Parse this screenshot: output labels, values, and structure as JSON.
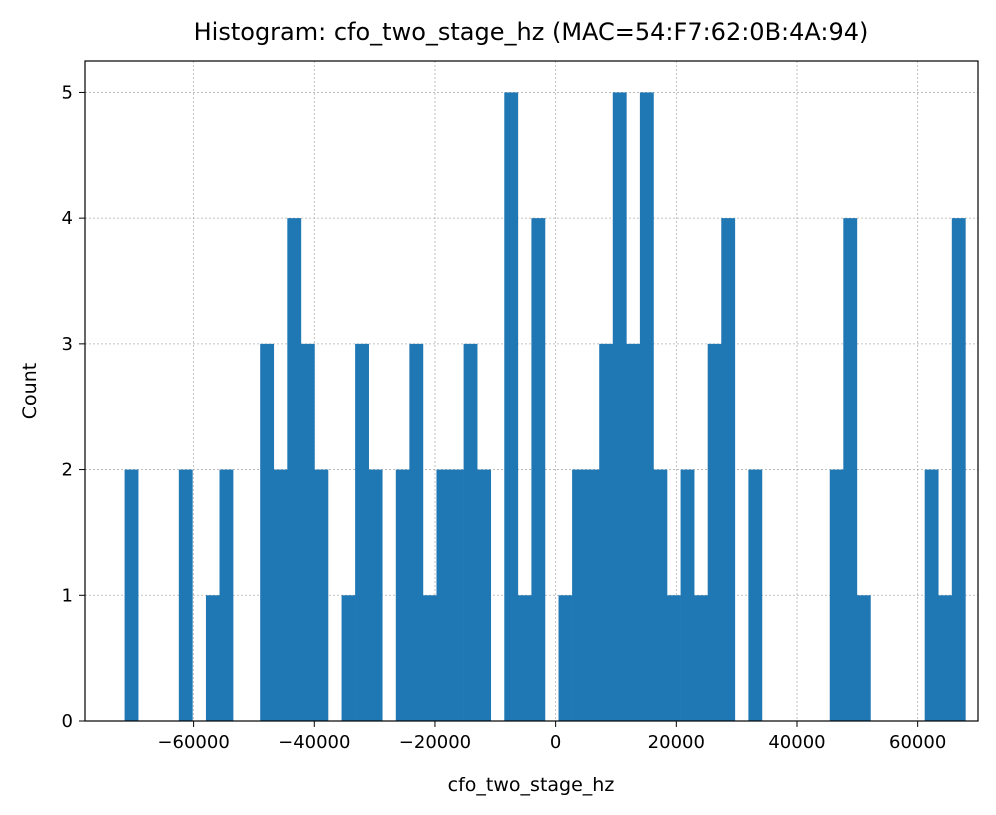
{
  "chart_data": {
    "type": "bar",
    "title": "Histogram: cfo_two_stage_hz (MAC=54:F7:62:0B:4A:94)",
    "xlabel": "cfo_two_stage_hz",
    "ylabel": "Count",
    "xlim": [
      -78000,
      70000
    ],
    "ylim": [
      0,
      5.25
    ],
    "xticks": [
      -60000,
      -40000,
      -20000,
      0,
      20000,
      40000,
      60000
    ],
    "xtick_labels": [
      "−60000",
      "−40000",
      "−20000",
      "0",
      "20000",
      "40000",
      "60000"
    ],
    "yticks": [
      0,
      1,
      2,
      3,
      4,
      5
    ],
    "ytick_labels": [
      "0",
      "1",
      "2",
      "3",
      "4",
      "5"
    ],
    "grid": true,
    "bar_color": "#1f77b4",
    "bin_start": -71440,
    "bin_width": 2247.5,
    "counts": [
      2,
      0,
      0,
      0,
      2,
      0,
      1,
      2,
      0,
      0,
      3,
      2,
      4,
      3,
      2,
      0,
      1,
      3,
      2,
      0,
      2,
      3,
      1,
      2,
      2,
      3,
      2,
      0,
      5,
      1,
      4,
      0,
      1,
      2,
      2,
      3,
      5,
      3,
      5,
      2,
      1,
      2,
      1,
      3,
      4,
      0,
      2,
      0,
      0,
      0,
      0,
      0,
      2,
      4,
      1,
      0,
      0,
      0,
      0,
      2,
      1,
      4
    ]
  }
}
